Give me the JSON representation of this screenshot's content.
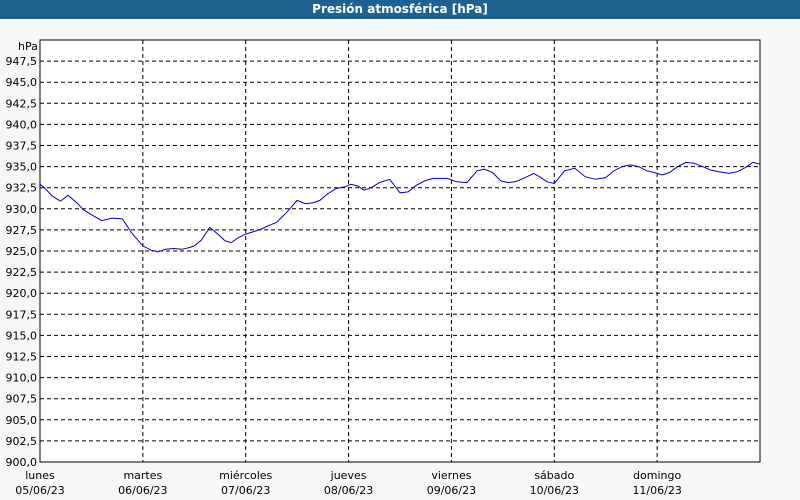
{
  "chart_data": {
    "type": "line",
    "title": "Presión atmosférica [hPa]",
    "ylabel": "hPa",
    "ylim": [
      900,
      950
    ],
    "yticks": [
      "900,0",
      "902,5",
      "905,0",
      "907,5",
      "910,0",
      "912,5",
      "915,0",
      "917,5",
      "920,0",
      "922,5",
      "925,0",
      "927,5",
      "930,0",
      "932,5",
      "935,0",
      "937,5",
      "940,0",
      "942,5",
      "945,0",
      "947,5"
    ],
    "xlim": [
      "05/06/23 00:00",
      "12/06/23 00:00"
    ],
    "xticks": [
      {
        "day": "lunes",
        "date": "05/06/23"
      },
      {
        "day": "martes",
        "date": "06/06/23"
      },
      {
        "day": "miércoles",
        "date": "07/06/23"
      },
      {
        "day": "jueves",
        "date": "08/06/23"
      },
      {
        "day": "viernes",
        "date": "09/06/23"
      },
      {
        "day": "sábado",
        "date": "10/06/23"
      },
      {
        "day": "domingo",
        "date": "11/06/23"
      }
    ],
    "grid": true,
    "series": [
      {
        "color": "#0000c8",
        "x_days": [
          0.0,
          0.05,
          0.12,
          0.2,
          0.27,
          0.35,
          0.42,
          0.5,
          0.6,
          0.7,
          0.8,
          0.9,
          1.0,
          1.08,
          1.15,
          1.22,
          1.3,
          1.38,
          1.45,
          1.5,
          1.57,
          1.65,
          1.73,
          1.8,
          1.86,
          1.93,
          2.0,
          2.08,
          2.15,
          2.22,
          2.3,
          2.4,
          2.5,
          2.58,
          2.65,
          2.72,
          2.8,
          2.88,
          2.96,
          3.02,
          3.09,
          3.15,
          3.22,
          3.3,
          3.4,
          3.5,
          3.58,
          3.66,
          3.74,
          3.82,
          3.9,
          3.96,
          4.05,
          4.15,
          4.25,
          4.32,
          4.4,
          4.48,
          4.55,
          4.62,
          4.7,
          4.8,
          4.87,
          4.93,
          5.0,
          5.1,
          5.2,
          5.3,
          5.4,
          5.5,
          5.58,
          5.66,
          5.74,
          5.82,
          5.9,
          5.97,
          6.05,
          6.12,
          6.2,
          6.28,
          6.36,
          6.44,
          6.52,
          6.6,
          6.7,
          6.78,
          6.86,
          6.93,
          7.0
        ],
        "values": [
          932.9,
          932.4,
          931.5,
          930.9,
          931.6,
          930.8,
          929.9,
          929.3,
          928.6,
          928.9,
          928.8,
          927.0,
          925.6,
          925.1,
          924.9,
          925.2,
          925.3,
          925.2,
          925.4,
          925.6,
          926.3,
          927.8,
          927.0,
          926.2,
          926.0,
          926.6,
          927.0,
          927.3,
          927.6,
          928.0,
          928.4,
          929.6,
          931.0,
          930.6,
          930.7,
          931.0,
          931.8,
          932.4,
          932.6,
          932.9,
          932.7,
          932.2,
          932.5,
          933.1,
          933.5,
          931.9,
          932.0,
          932.8,
          933.3,
          933.6,
          933.6,
          933.6,
          933.2,
          933.1,
          934.5,
          934.7,
          934.3,
          933.3,
          933.1,
          933.2,
          933.6,
          934.2,
          933.7,
          933.2,
          933.0,
          934.5,
          934.8,
          933.8,
          933.5,
          933.7,
          934.5,
          935.0,
          935.2,
          935.0,
          934.5,
          934.3,
          934.0,
          934.3,
          935.0,
          935.5,
          935.4,
          935.0,
          934.6,
          934.4,
          934.2,
          934.4,
          934.9,
          935.5,
          935.3
        ]
      }
    ]
  }
}
